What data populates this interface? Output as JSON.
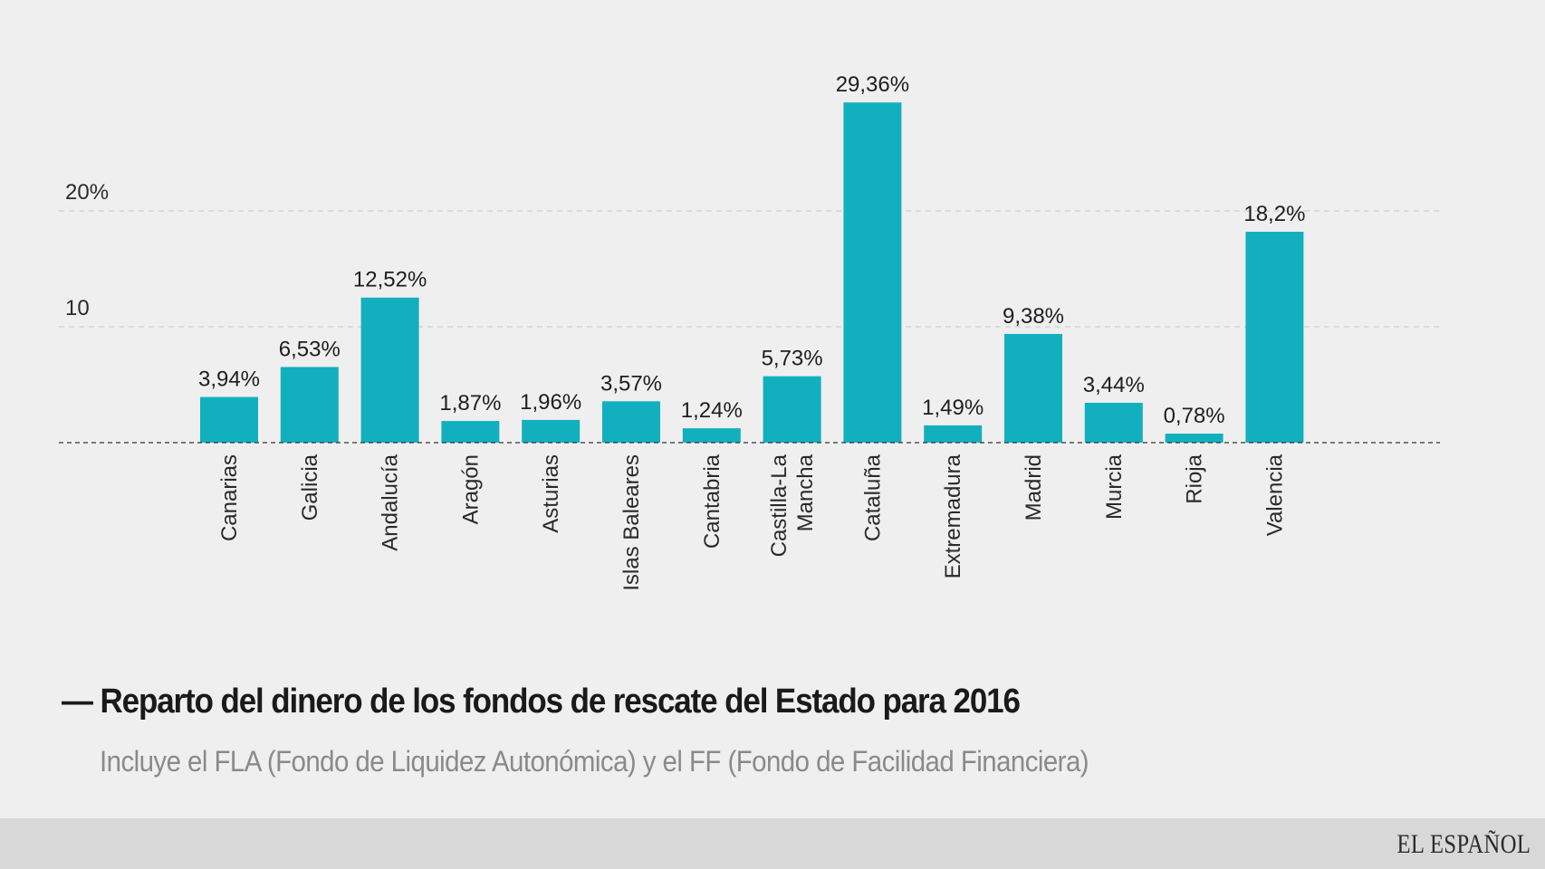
{
  "chart_data": {
    "type": "bar",
    "title": "Reparto del dinero de los fondos de rescate del Estado para 2016",
    "subtitle": "Incluye el FLA (Fondo de Liquidez Autonómica) y el FF (Fondo de Facilidad Financiera)",
    "xlabel": "",
    "ylabel": "",
    "ylim": [
      0,
      30
    ],
    "grid": true,
    "y_ticks": [
      {
        "value": 10,
        "label": "10"
      },
      {
        "value": 20,
        "label": "20%"
      }
    ],
    "categories": [
      "Canarias",
      "Galicia",
      "Andalucía",
      "Aragón",
      "Asturias",
      "Islas Baleares",
      "Cantabria",
      "Castilla-La Mancha",
      "Cataluña",
      "Extremadura",
      "Madrid",
      "Murcia",
      "Rioja",
      "Valencia"
    ],
    "category_label_lines": [
      [
        "Canarias"
      ],
      [
        "Galicia"
      ],
      [
        "Andalucía"
      ],
      [
        "Aragón"
      ],
      [
        "Asturias"
      ],
      [
        "Islas Baleares"
      ],
      [
        "Cantabria"
      ],
      [
        "Castilla-La",
        "Mancha"
      ],
      [
        "Cataluña"
      ],
      [
        "Extremadura"
      ],
      [
        "Madrid"
      ],
      [
        "Murcia"
      ],
      [
        "Rioja"
      ],
      [
        "Valencia"
      ]
    ],
    "values": [
      3.94,
      6.53,
      12.52,
      1.87,
      1.96,
      3.57,
      1.24,
      5.73,
      29.36,
      1.49,
      9.38,
      3.44,
      0.78,
      18.2
    ],
    "value_labels": [
      "3,94%",
      "6,53%",
      "12,52%",
      "1,87%",
      "1,96%",
      "3,57%",
      "1,24%",
      "5,73%",
      "29,36%",
      "1,49%",
      "9,38%",
      "3,44%",
      "0,78%",
      "18,2%"
    ],
    "bar_color": "#12b0bf"
  },
  "header": {
    "title_prefix": "—",
    "title": "Reparto del dinero de los fondos de rescate del Estado para 2016",
    "subtitle": "Incluye el FLA (Fondo de Liquidez Autonómica) y el FF (Fondo de Facilidad Financiera)"
  },
  "footer": {
    "brand": "EL ESPAÑOL"
  },
  "colors": {
    "background": "#efefef",
    "footer": "#d8d8d8",
    "bar": "#12b0bf",
    "title": "#1a1a1a",
    "subtitle": "#8a8a8a"
  }
}
